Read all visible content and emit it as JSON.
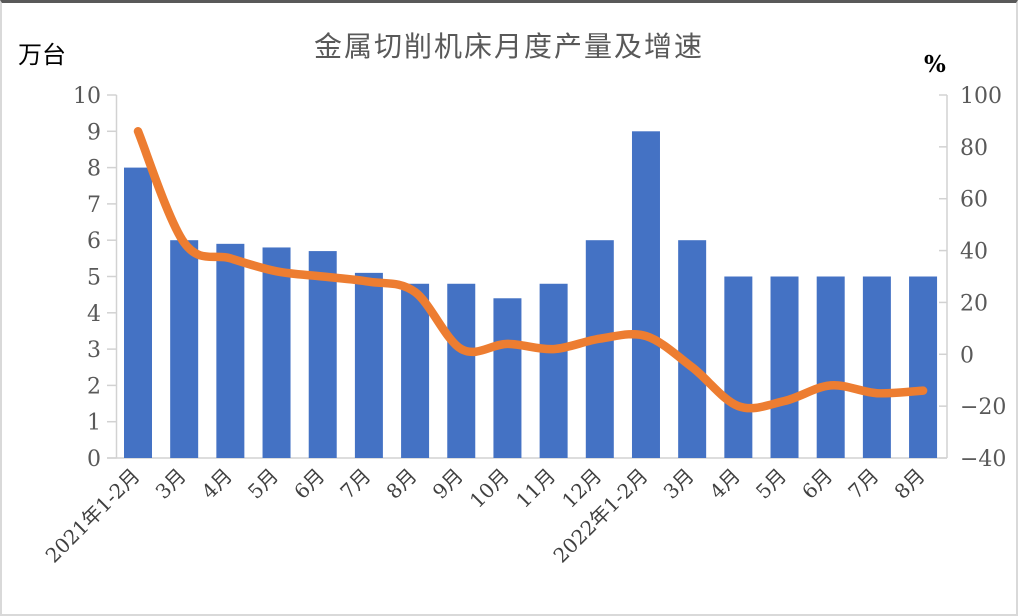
{
  "chart_data": {
    "type": "bar",
    "title": "金属切削机床月度产量及增速",
    "left_axis": {
      "unit": "万台",
      "min": 0,
      "max": 10,
      "step": 1,
      "tick_labels": [
        "0",
        "1",
        "2",
        "3",
        "4",
        "5",
        "6",
        "7",
        "8",
        "9",
        "10"
      ]
    },
    "right_axis": {
      "unit": "%",
      "min": -40,
      "max": 100,
      "step": 20,
      "tick_labels": [
        "-40",
        "-20",
        "0",
        "20",
        "40",
        "60",
        "80",
        "100"
      ]
    },
    "categories": [
      "2021年1-2月",
      "3月",
      "4月",
      "5月",
      "6月",
      "7月",
      "8月",
      "9月",
      "10月",
      "11月",
      "12月",
      "2022年1-2月",
      "3月",
      "4月",
      "5月",
      "6月",
      "7月",
      "8月"
    ],
    "series": [
      {
        "id": "production-bars",
        "type": "bar",
        "axis": "left",
        "color": "#4472C4",
        "values": [
          8.0,
          6.0,
          5.9,
          5.8,
          5.7,
          5.1,
          4.8,
          4.8,
          4.4,
          4.8,
          6.0,
          9.0,
          6.0,
          5.0,
          5.0,
          5.0,
          5.0,
          5.0
        ]
      },
      {
        "id": "growth-line",
        "type": "line",
        "axis": "right",
        "color": "#ED7D31",
        "values": [
          86,
          43,
          37,
          32,
          30,
          28,
          24,
          2,
          4,
          2,
          6,
          7,
          -5,
          -20,
          -18,
          -12,
          -15,
          -14
        ]
      }
    ],
    "grid": false,
    "legend": "none",
    "axis_line_color": "#d2d2d2"
  }
}
